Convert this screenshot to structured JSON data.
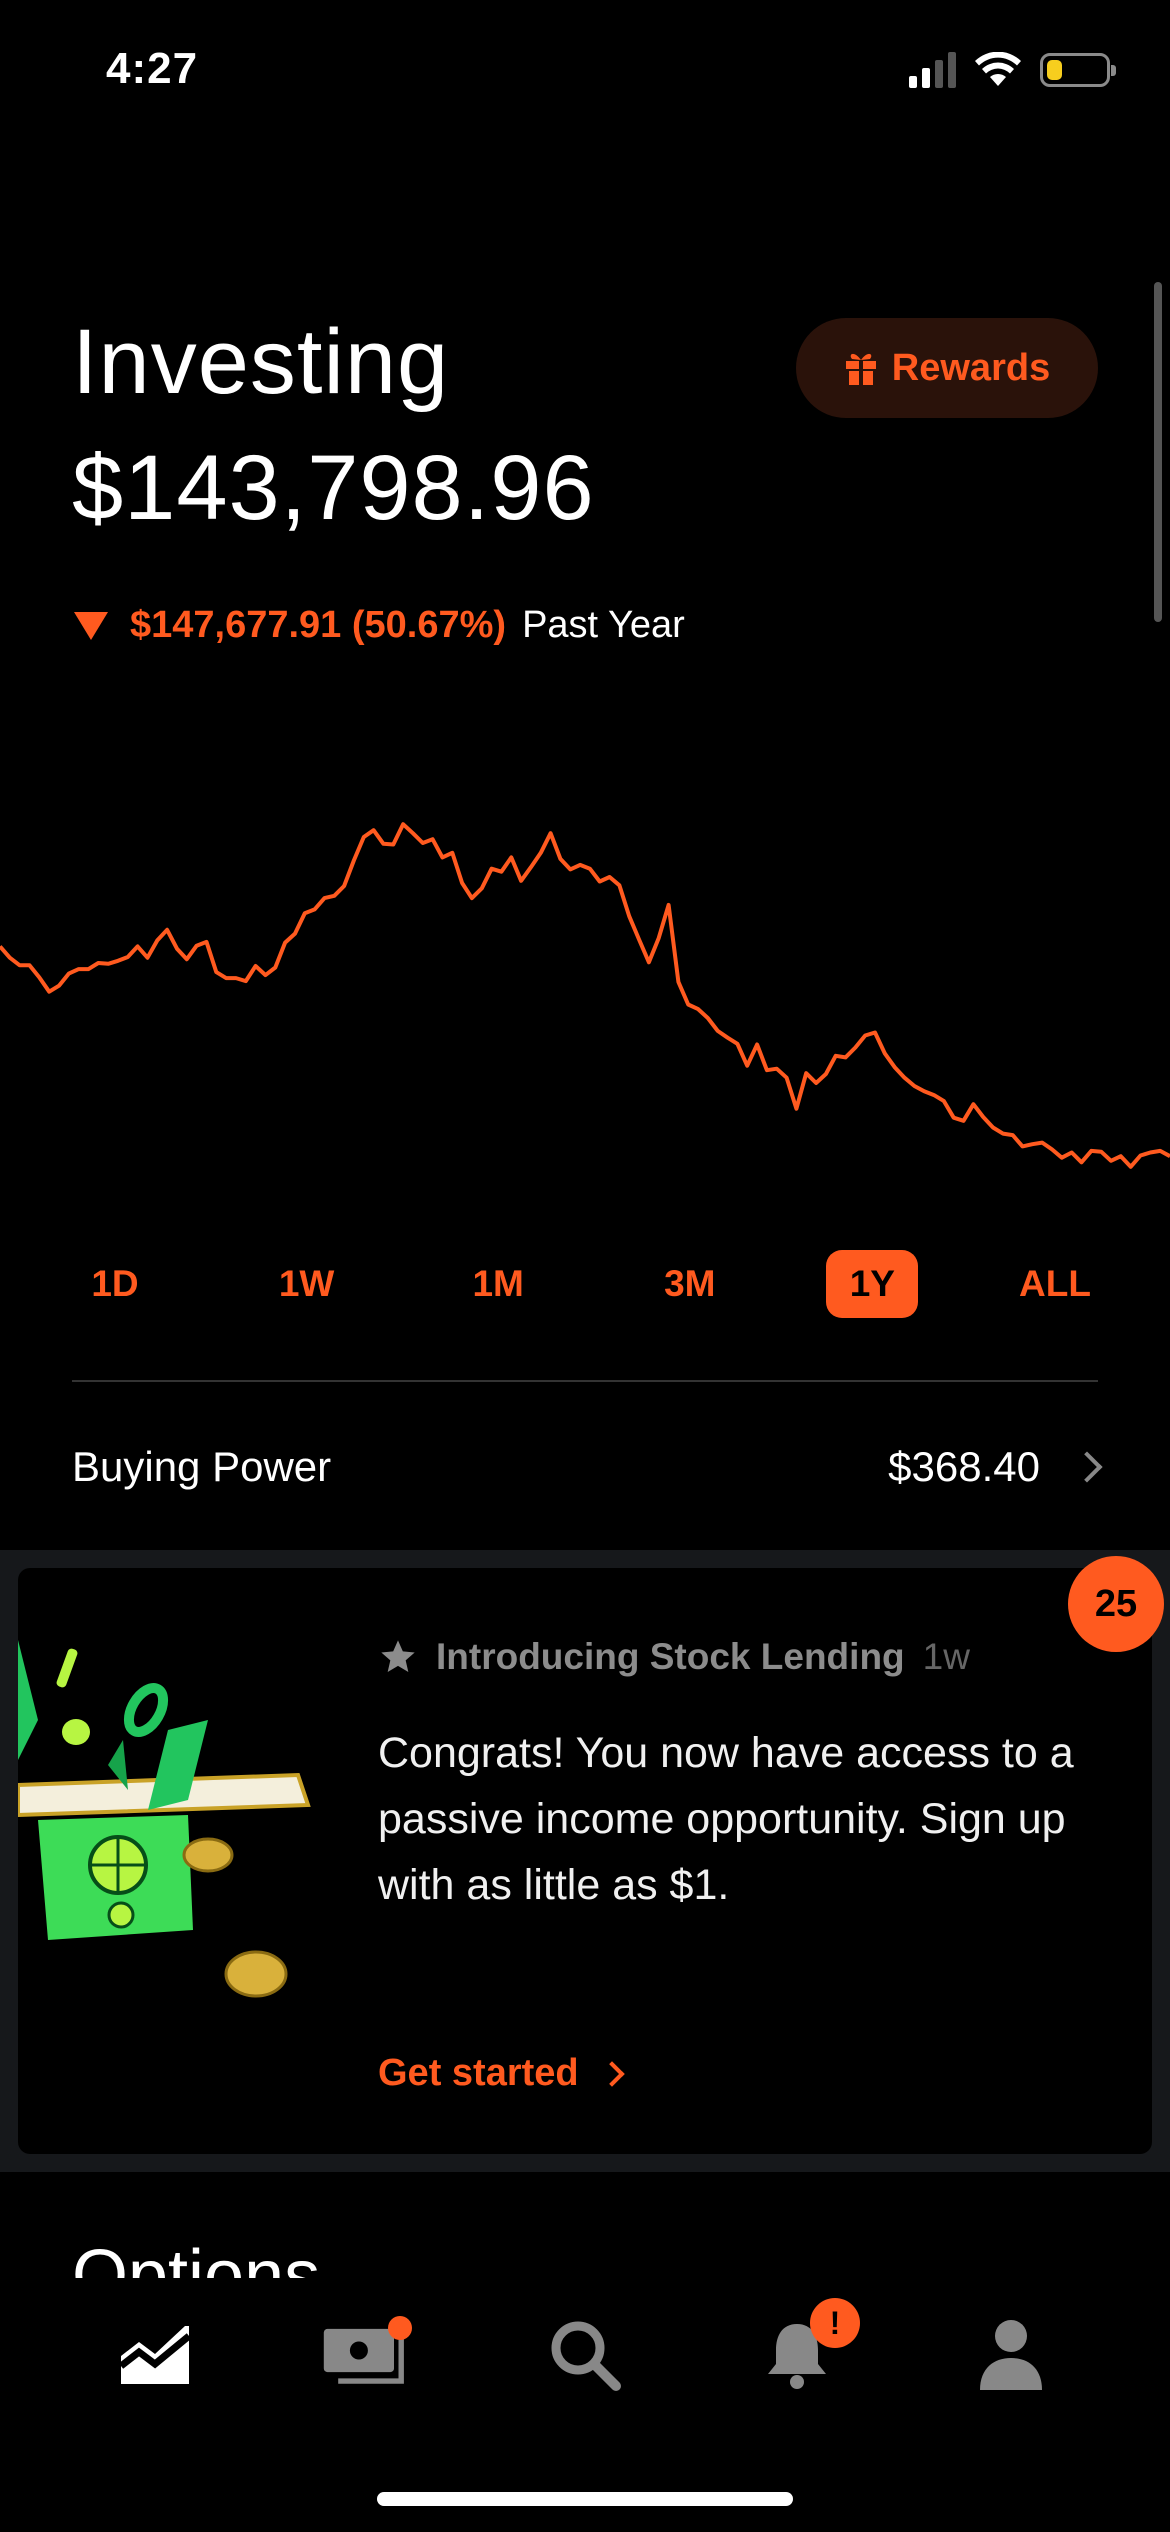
{
  "status_bar": {
    "time": "4:27",
    "battery_level": 0.25
  },
  "header": {
    "title": "Investing",
    "portfolio_value": "$143,798.96",
    "rewards_label": "Rewards",
    "change_value": "$147,677.91 (50.67%)",
    "change_period": "Past Year"
  },
  "chart_data": {
    "type": "line",
    "direction": "down",
    "color": "#ff5a1f",
    "series": [
      {
        "values": [
          88.6,
          87.1,
          86.1,
          86.1,
          84.5,
          82.6,
          83.4,
          85,
          85.6,
          85.6,
          86.4,
          86.3,
          86.7,
          87.2,
          88.6,
          87.1,
          89.4,
          90.8,
          88.3,
          86.9,
          88.7,
          89.2,
          85.2,
          84.4,
          84.4,
          84,
          86,
          84.8,
          85.8,
          89.1,
          90.3,
          93,
          93.5,
          95,
          95.3,
          96.6,
          100,
          103.1,
          104,
          102.2,
          102.1,
          104.8,
          103.6,
          102.3,
          102.8,
          100.4,
          101,
          97,
          95,
          96.3,
          98.9,
          98.5,
          100.4,
          97.3,
          99.1,
          101,
          103.6,
          100.2,
          98.8,
          99.4,
          98.9,
          97.2,
          97.8,
          96.7,
          92.6,
          89.5,
          86.5,
          89.7,
          94.1,
          83.9,
          80.9,
          80.3,
          79.1,
          77.4,
          76.5,
          75.7,
          72.8,
          75.6,
          72.2,
          72.4,
          71.2,
          67.1,
          71.8,
          70.5,
          71.7,
          74.1,
          73.9,
          75.2,
          76.8,
          77.2,
          74.4,
          72.6,
          71.2,
          70.1,
          69.4,
          68.9,
          68.1,
          65.9,
          65.5,
          67.7,
          66,
          64.6,
          63.8,
          63.6,
          62.1,
          62.4,
          62.6,
          61.7,
          60.6,
          61.3,
          60,
          61.5,
          61.4,
          60.2,
          60.8,
          59.4,
          60.9,
          61.3,
          61.5,
          60.8
        ]
      }
    ],
    "ylim": [
      55,
      108
    ]
  },
  "ranges": {
    "items": [
      "1D",
      "1W",
      "1M",
      "3M",
      "1Y",
      "ALL"
    ],
    "selected": "1Y"
  },
  "buying_power": {
    "label": "Buying Power",
    "value": "$368.40"
  },
  "promo": {
    "badge_count": "25",
    "title": "Introducing Stock Lending",
    "age": "1w",
    "body": "Congrats! You now have access to a passive income opportunity. Sign up with as little as $1.",
    "cta": "Get started"
  },
  "next_section": {
    "title": "Options"
  },
  "tab_bar": {
    "tabs": [
      "chart-tab",
      "cash-tab",
      "search-tab",
      "notifications-tab",
      "account-tab"
    ],
    "notification_badge": "!"
  }
}
